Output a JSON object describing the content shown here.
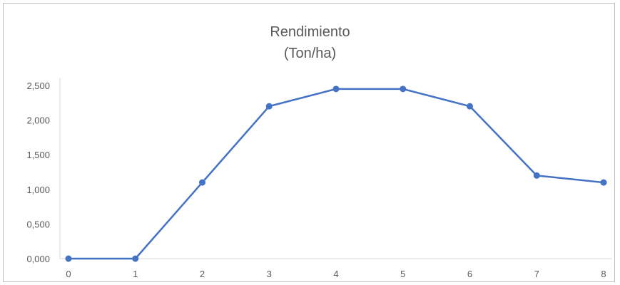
{
  "chart_data": {
    "type": "line",
    "title": "Rendimiento",
    "subtitle": "(Ton/ha)",
    "x": [
      0,
      1,
      2,
      3,
      4,
      5,
      6,
      7,
      8
    ],
    "series": [
      {
        "values": [
          0.0,
          0.0,
          1.1,
          2.2,
          2.45,
          2.45,
          2.2,
          1.2,
          1.1
        ]
      }
    ],
    "xlim": [
      0,
      8
    ],
    "ylim": [
      0,
      2.5
    ],
    "yticks": [
      "0,000",
      "0,500",
      "1,000",
      "1,500",
      "2,000",
      "2,500"
    ],
    "xticks": [
      "0",
      "1",
      "2",
      "3",
      "4",
      "5",
      "6",
      "7",
      "8"
    ],
    "grid": false,
    "legend": "none",
    "colors": {
      "line": "#4472c4",
      "axis": "#d9d9d9",
      "text": "#595959",
      "border": "#bfbfbf"
    }
  }
}
